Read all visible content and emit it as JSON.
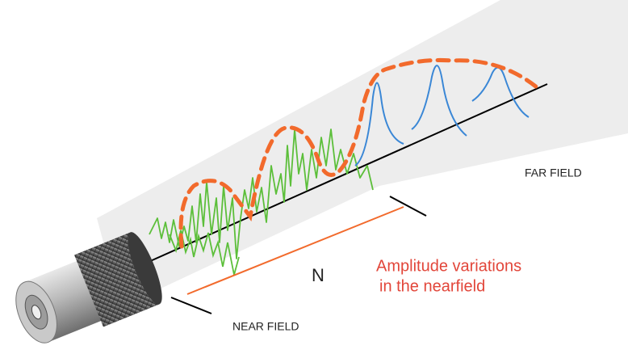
{
  "labels": {
    "far_field": "FAR FIELD",
    "near_field": "NEAR FIELD",
    "distance": "N"
  },
  "annotation": {
    "lines": [
      "Amplitude variations",
      "in the nearfield"
    ]
  }
}
